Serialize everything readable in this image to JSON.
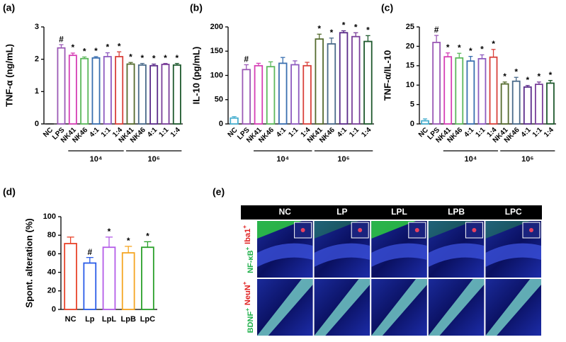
{
  "chart_data": [
    {
      "type": "bar",
      "label": "(a)",
      "y_label": "TNF-α (ng/mL)",
      "categories": [
        "NC",
        "LPS",
        "NK41",
        "NK46",
        "4:1",
        "1:1",
        "1:4",
        "NK41",
        "NK46",
        "4:1",
        "1:1",
        "1:4"
      ],
      "values": [
        0,
        2.35,
        2.12,
        2.02,
        2.04,
        2.08,
        2.08,
        1.85,
        1.82,
        1.8,
        1.84,
        1.82
      ],
      "errors": [
        0,
        0.1,
        0.07,
        0.05,
        0.04,
        0.12,
        0.15,
        0.05,
        0.05,
        0.05,
        0.03,
        0.05
      ],
      "annotations": [
        null,
        "#",
        "*",
        "*",
        "*",
        "*",
        "*",
        "*",
        "*",
        "*",
        "*",
        "*"
      ],
      "colors": [
        "#333333",
        "#9b59b6",
        "#d63fb5",
        "#5cb85c",
        "#3a6fb0",
        "#8e5bbf",
        "#d9413b",
        "#556b2f",
        "#4a6a8a",
        "#5b2c8a",
        "#7a3f9a",
        "#1f5a2e"
      ],
      "groups": [
        {
          "label": "10⁴",
          "span": [
            2,
            6
          ]
        },
        {
          "label": "10⁶",
          "span": [
            7,
            11
          ]
        }
      ],
      "ylim": [
        0,
        3
      ],
      "yticks": [
        0,
        1,
        2,
        3
      ]
    },
    {
      "type": "bar",
      "label": "(b)",
      "y_label": "IL-10 (pg/mL)",
      "categories": [
        "NC",
        "LPS",
        "NK41",
        "NK46",
        "4:1",
        "1:1",
        "1:4",
        "NK41",
        "NK46",
        "4:1",
        "1:1",
        "1:4"
      ],
      "values": [
        12,
        112,
        120,
        118,
        125,
        122,
        120,
        175,
        165,
        188,
        180,
        170
      ],
      "errors": [
        3,
        10,
        5,
        10,
        12,
        8,
        7,
        10,
        12,
        4,
        8,
        12
      ],
      "annotations": [
        null,
        "#",
        null,
        null,
        null,
        null,
        null,
        "*",
        "*",
        "*",
        "*",
        "*"
      ],
      "colors": [
        "#4ab0d0",
        "#9b59b6",
        "#d63fb5",
        "#5cb85c",
        "#3a6fb0",
        "#8e5bbf",
        "#d9413b",
        "#556b2f",
        "#4a6a8a",
        "#5b2c8a",
        "#7a3f9a",
        "#1f5a2e"
      ],
      "groups": [
        {
          "label": "10⁴",
          "span": [
            2,
            6
          ]
        },
        {
          "label": "10⁶",
          "span": [
            7,
            11
          ]
        }
      ],
      "ylim": [
        0,
        200
      ],
      "yticks": [
        0,
        50,
        100,
        150,
        200
      ]
    },
    {
      "type": "bar",
      "label": "(c)",
      "y_label": "TNF-α/IL-10",
      "categories": [
        "NC",
        "LPS",
        "NK41",
        "NK46",
        "4:1",
        "1:1",
        "1:4",
        "NK41",
        "NK46",
        "4:1",
        "1:1",
        "1:4"
      ],
      "values": [
        0.8,
        21,
        17.3,
        17,
        16.2,
        16.8,
        17.2,
        10.3,
        11,
        9.5,
        10.2,
        10.5
      ],
      "errors": [
        0.5,
        1.8,
        1,
        1.2,
        1.2,
        1,
        2,
        0.5,
        1,
        0.4,
        0.6,
        0.7
      ],
      "annotations": [
        null,
        "#",
        "*",
        "*",
        "*",
        "*",
        "*",
        "*",
        "*",
        "*",
        "*",
        "*"
      ],
      "colors": [
        "#4ab0d0",
        "#9b59b6",
        "#d63fb5",
        "#5cb85c",
        "#3a6fb0",
        "#8e5bbf",
        "#d9413b",
        "#556b2f",
        "#4a6a8a",
        "#5b2c8a",
        "#7a3f9a",
        "#1f5a2e"
      ],
      "groups": [
        {
          "label": "10⁴",
          "span": [
            2,
            6
          ]
        },
        {
          "label": "10⁶",
          "span": [
            7,
            11
          ]
        }
      ],
      "ylim": [
        0,
        25
      ],
      "yticks": [
        0,
        5,
        10,
        15,
        20,
        25
      ]
    },
    {
      "type": "bar",
      "label": "(d)",
      "y_label": "Spont. alteration (%)",
      "categories": [
        "NC",
        "Lp",
        "LpL",
        "LpB",
        "LpC"
      ],
      "values": [
        71,
        50,
        67,
        61,
        67
      ],
      "errors": [
        7,
        6,
        11,
        7,
        6
      ],
      "annotations": [
        null,
        "#",
        "*",
        "*",
        "*"
      ],
      "colors": [
        "#e8432a",
        "#2a5ce8",
        "#b45ce8",
        "#f5a623",
        "#2aa02a"
      ],
      "ylim": [
        0,
        100
      ],
      "yticks": [
        0,
        20,
        40,
        60,
        80,
        100
      ]
    }
  ],
  "image_panel": {
    "label": "(e)",
    "columns": [
      "NC",
      "LP",
      "LPL",
      "LPB",
      "LPC"
    ],
    "rows": [
      {
        "stains": [
          {
            "name": "NF-κB",
            "sign": "+",
            "color": "#22b14c"
          },
          {
            "name": "Iba1",
            "sign": "+",
            "color": "#e02020"
          }
        ]
      },
      {
        "stains": [
          {
            "name": "BDNF",
            "sign": "+",
            "color": "#22b14c"
          },
          {
            "name": "NeuN",
            "sign": "+",
            "color": "#e02020"
          }
        ]
      }
    ]
  }
}
